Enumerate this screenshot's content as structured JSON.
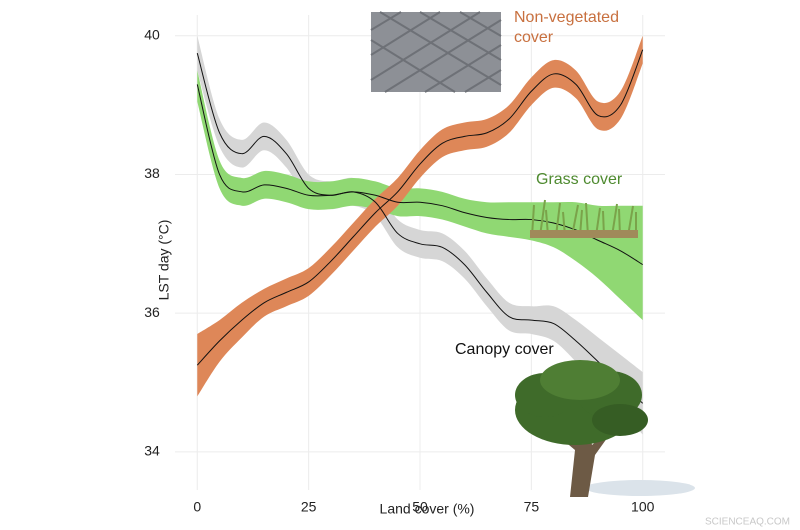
{
  "chart_data": {
    "type": "line",
    "x_label": "Land cover (%)",
    "y_label": "LST day (°C)",
    "watermark": "SCIENCEAQ.COM",
    "xlim": [
      -5,
      105
    ],
    "ylim": [
      33.45,
      40.3
    ],
    "xticks": [
      0,
      25,
      50,
      75,
      100
    ],
    "yticks": [
      34,
      36,
      38,
      40
    ],
    "grid": true,
    "x": [
      0,
      5,
      10,
      15,
      20,
      25,
      30,
      35,
      40,
      45,
      50,
      55,
      60,
      65,
      70,
      75,
      80,
      85,
      90,
      95,
      100
    ],
    "series": [
      {
        "name": "Canopy cover",
        "color": "#d6d6d6",
        "label_color": "#111111",
        "values": [
          39.75,
          38.6,
          38.3,
          38.55,
          38.3,
          37.8,
          37.7,
          37.75,
          37.6,
          37.15,
          37.0,
          36.95,
          36.7,
          36.3,
          35.95,
          35.9,
          35.85,
          35.6,
          35.3,
          35.0,
          34.7
        ],
        "lower": [
          39.5,
          38.4,
          38.1,
          38.35,
          38.1,
          37.6,
          37.5,
          37.55,
          37.4,
          36.95,
          36.8,
          36.75,
          36.5,
          36.1,
          35.75,
          35.7,
          35.6,
          35.3,
          34.95,
          34.6,
          34.25
        ],
        "upper": [
          40.0,
          38.8,
          38.5,
          38.75,
          38.5,
          38.0,
          37.9,
          37.95,
          37.8,
          37.35,
          37.2,
          37.15,
          36.9,
          36.5,
          36.15,
          36.1,
          36.1,
          35.9,
          35.65,
          35.4,
          35.15
        ]
      },
      {
        "name": "Grass cover",
        "color": "#90d873",
        "label_color": "#4e8a2f",
        "values": [
          39.3,
          38.0,
          37.75,
          37.85,
          37.8,
          37.7,
          37.7,
          37.75,
          37.7,
          37.6,
          37.6,
          37.55,
          37.45,
          37.38,
          37.35,
          37.35,
          37.3,
          37.2,
          37.05,
          36.9,
          36.7
        ],
        "lower": [
          39.05,
          37.8,
          37.55,
          37.65,
          37.6,
          37.5,
          37.5,
          37.55,
          37.5,
          37.4,
          37.4,
          37.35,
          37.25,
          37.15,
          37.1,
          37.05,
          36.95,
          36.75,
          36.5,
          36.2,
          35.9
        ],
        "upper": [
          39.5,
          38.2,
          37.95,
          38.05,
          38.0,
          37.9,
          37.9,
          37.95,
          37.9,
          37.8,
          37.8,
          37.75,
          37.65,
          37.6,
          37.6,
          37.6,
          37.6,
          37.6,
          37.55,
          37.55,
          37.55
        ]
      },
      {
        "name": "Non-vegetated cover",
        "color": "#de8758",
        "label_color": "#c8703f",
        "values": [
          35.25,
          35.6,
          35.9,
          36.15,
          36.3,
          36.45,
          36.75,
          37.1,
          37.45,
          37.75,
          38.15,
          38.45,
          38.55,
          38.6,
          38.8,
          39.2,
          39.45,
          39.3,
          38.85,
          39.0,
          39.8
        ],
        "lower": [
          34.8,
          35.3,
          35.65,
          35.95,
          36.1,
          36.25,
          36.55,
          36.9,
          37.25,
          37.55,
          37.95,
          38.25,
          38.35,
          38.4,
          38.6,
          39.0,
          39.25,
          39.1,
          38.65,
          38.8,
          39.6
        ],
        "upper": [
          35.7,
          35.9,
          36.15,
          36.35,
          36.5,
          36.65,
          36.95,
          37.3,
          37.65,
          37.95,
          38.35,
          38.65,
          38.75,
          38.8,
          39.0,
          39.4,
          39.65,
          39.5,
          39.05,
          39.2,
          40.0
        ]
      }
    ]
  }
}
